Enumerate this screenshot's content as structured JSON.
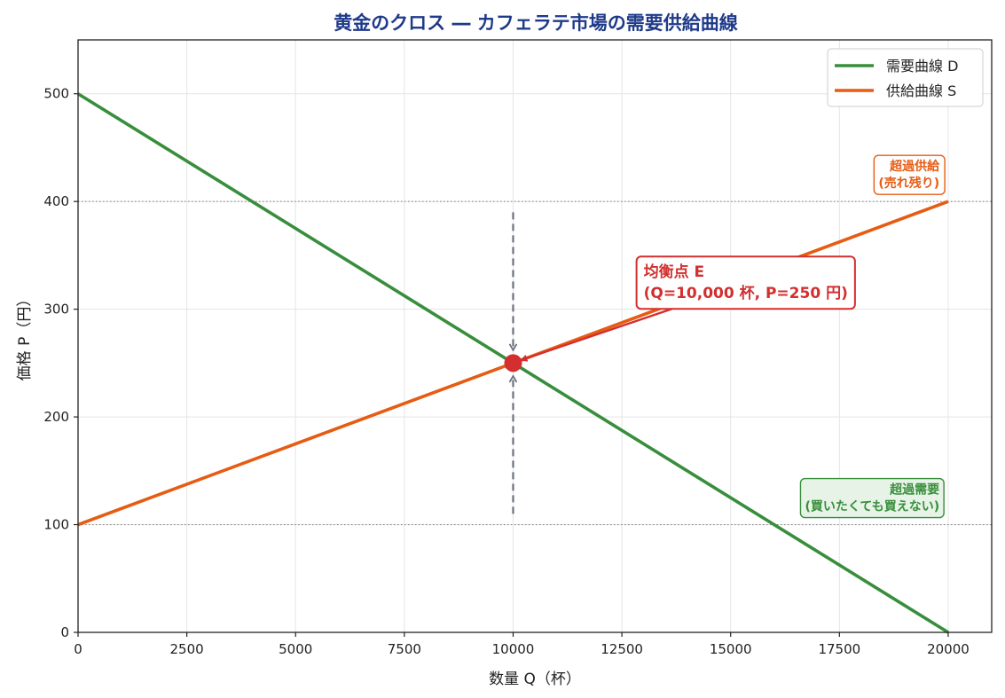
{
  "chart_data": {
    "type": "line",
    "title": "黄金のクロス ― カフェラテ市場の需要供給曲線",
    "xlabel": "数量 Q（杯）",
    "ylabel": "価格 P（円）",
    "xlim": [
      0,
      21000
    ],
    "ylim": [
      0,
      550
    ],
    "x_ticks": [
      0,
      2500,
      5000,
      7500,
      10000,
      12500,
      15000,
      17500,
      20000
    ],
    "y_ticks": [
      0,
      100,
      200,
      300,
      400,
      500
    ],
    "grid": true,
    "legend_position": "top-right",
    "series": [
      {
        "name": "需要曲線 D",
        "color": "#388e3c",
        "x": [
          0,
          20000
        ],
        "y": [
          500,
          0
        ]
      },
      {
        "name": "供給曲線 S",
        "color": "#e65c13",
        "x": [
          0,
          20000
        ],
        "y": [
          100,
          400
        ]
      }
    ],
    "reference_lines": [
      {
        "axis": "y",
        "value": 400,
        "style": "dotted",
        "color": "#888888"
      },
      {
        "axis": "y",
        "value": 100,
        "style": "dotted",
        "color": "#888888"
      }
    ],
    "equilibrium": {
      "x": 10000,
      "y": 250,
      "color": "#d32f2f"
    },
    "adjustment_arrows": [
      {
        "x": 10000,
        "from_y": 390,
        "to_y": 262
      },
      {
        "x": 10000,
        "from_y": 110,
        "to_y": 238
      }
    ],
    "annotations": [
      {
        "id": "equilibrium",
        "lines": [
          "均衡点 E",
          "(Q=10,000 杯, P=250 円)"
        ],
        "color": "#d32f2f",
        "background": "#ffffff",
        "anchor": {
          "x": 13000,
          "y": 325
        },
        "points_to": {
          "x": 10000,
          "y": 250
        }
      },
      {
        "id": "excess-supply",
        "lines": [
          "超過供給",
          "(売れ残り)"
        ],
        "color": "#e65c13",
        "background": "#ffffff",
        "anchor": {
          "x": 19800,
          "y": 425
        }
      },
      {
        "id": "excess-demand",
        "lines": [
          "超過需要",
          "(買いたくても買えない)"
        ],
        "color": "#388e3c",
        "background": "#e6f3e6",
        "anchor": {
          "x": 19800,
          "y": 125
        }
      }
    ]
  }
}
